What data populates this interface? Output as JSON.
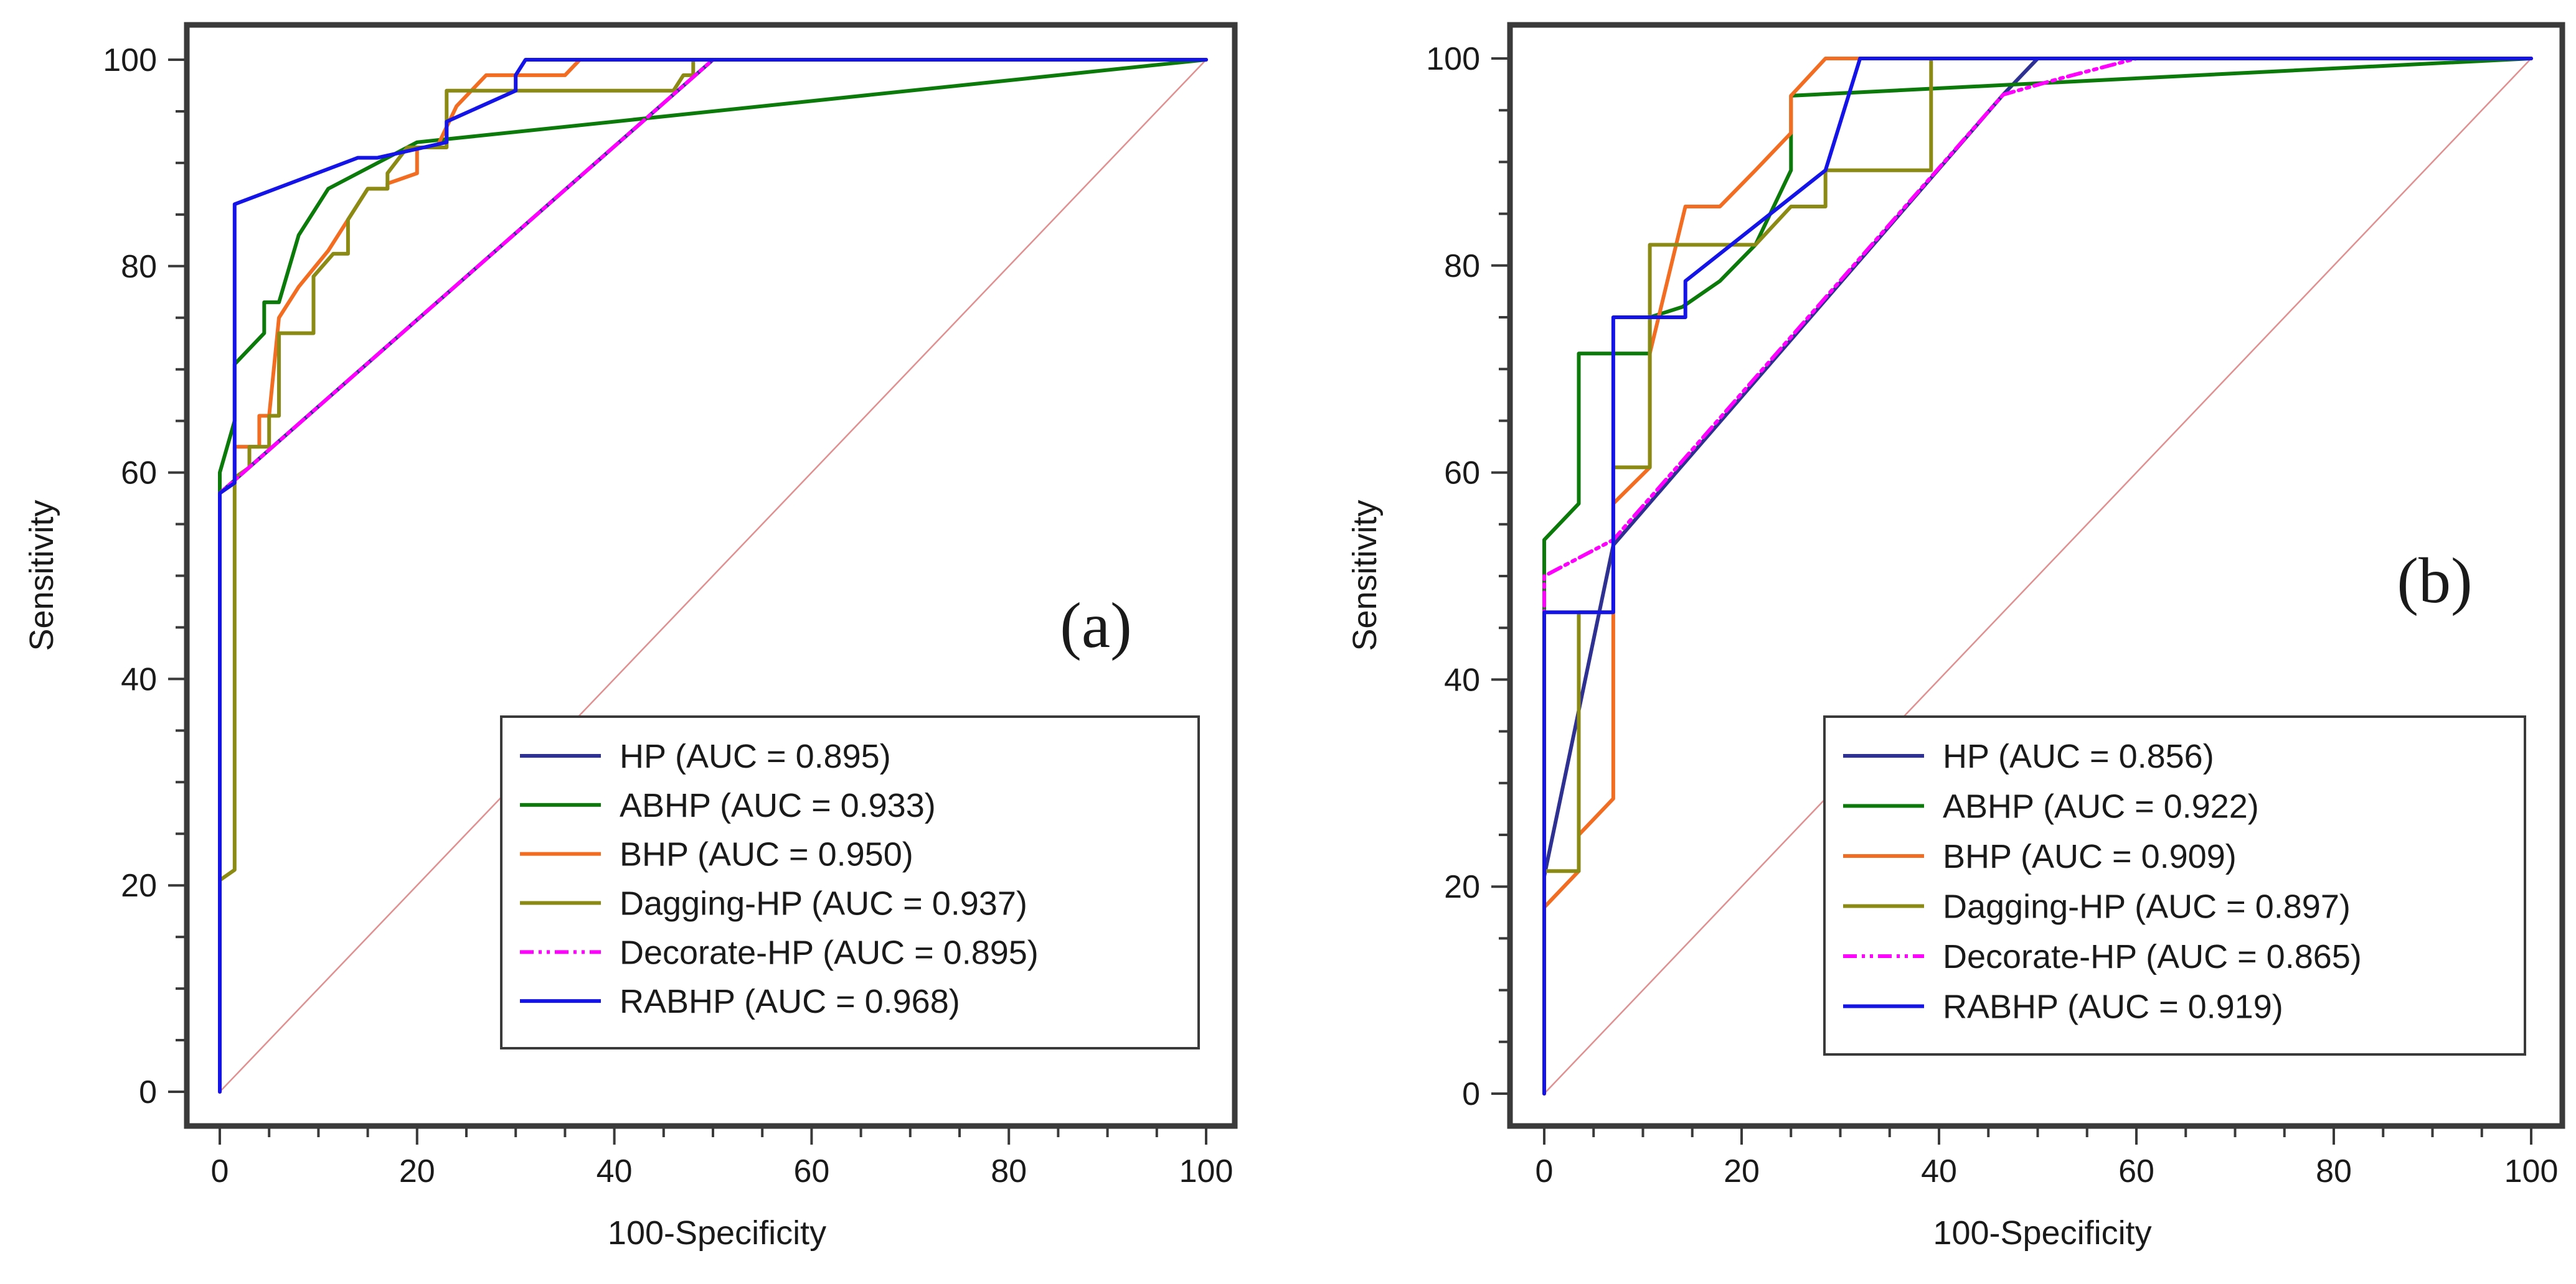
{
  "chart_data": [
    {
      "type": "line",
      "panel_label": "(a)",
      "xlabel": "100-Specificity",
      "ylabel": "Sensitivity",
      "xlim": [
        0,
        100
      ],
      "ylim": [
        0,
        100
      ],
      "xticks": [
        "0",
        "20",
        "40",
        "60",
        "80",
        "100"
      ],
      "yticks": [
        "0",
        "20",
        "40",
        "60",
        "80",
        "100"
      ],
      "legend_position": "bottom-right",
      "series": [
        {
          "name": "HP",
          "label": "HP (AUC = 0.895)",
          "auc": 0.895,
          "color": "#2e3192",
          "dash": "solid",
          "points": [
            [
              0,
              0
            ],
            [
              0,
              58
            ],
            [
              50,
              100
            ],
            [
              100,
              100
            ]
          ]
        },
        {
          "name": "ABHP",
          "label": "ABHP (AUC = 0.933)",
          "auc": 0.933,
          "color": "#0b7a0b",
          "dash": "solid",
          "points": [
            [
              0,
              0
            ],
            [
              0,
              60
            ],
            [
              1.5,
              65
            ],
            [
              1.5,
              70.5
            ],
            [
              4.5,
              73.5
            ],
            [
              4.5,
              76.5
            ],
            [
              6,
              76.5
            ],
            [
              8,
              83
            ],
            [
              11,
              87.5
            ],
            [
              16,
              90
            ],
            [
              20,
              92
            ],
            [
              25,
              92.5
            ],
            [
              100,
              100
            ]
          ]
        },
        {
          "name": "BHP",
          "label": "BHP (AUC = 0.950)",
          "auc": 0.95,
          "color": "#f26d21",
          "dash": "solid",
          "points": [
            [
              0,
              0
            ],
            [
              0,
              58
            ],
            [
              1.5,
              59
            ],
            [
              1.5,
              62.5
            ],
            [
              4,
              62.5
            ],
            [
              4,
              65.5
            ],
            [
              5,
              65.5
            ],
            [
              6,
              75
            ],
            [
              8,
              78
            ],
            [
              11,
              81.5
            ],
            [
              13,
              84.5
            ],
            [
              15,
              87.5
            ],
            [
              17,
              87.5
            ],
            [
              17,
              88
            ],
            [
              20,
              89
            ],
            [
              20,
              91.5
            ],
            [
              22,
              91.5
            ],
            [
              24,
              95.5
            ],
            [
              27,
              98.5
            ],
            [
              30,
              98.5
            ],
            [
              35,
              98.5
            ],
            [
              36.5,
              100
            ],
            [
              100,
              100
            ]
          ]
        },
        {
          "name": "Dagging-HP",
          "label": "Dagging-HP (AUC = 0.937)",
          "auc": 0.937,
          "color": "#8a8a14",
          "dash": "solid",
          "points": [
            [
              0,
              0
            ],
            [
              0,
              20.5
            ],
            [
              1.5,
              21.5
            ],
            [
              1.5,
              59.5
            ],
            [
              3,
              60.5
            ],
            [
              3,
              62.5
            ],
            [
              5,
              62.5
            ],
            [
              5,
              65.5
            ],
            [
              6,
              65.5
            ],
            [
              6,
              73.5
            ],
            [
              9.5,
              73.5
            ],
            [
              9.5,
              79
            ],
            [
              11.5,
              81.2
            ],
            [
              13,
              81.2
            ],
            [
              13,
              84.5
            ],
            [
              15,
              87.5
            ],
            [
              17,
              87.5
            ],
            [
              17,
              89
            ],
            [
              19,
              91.5
            ],
            [
              23,
              91.5
            ],
            [
              23,
              97
            ],
            [
              46,
              97
            ],
            [
              47,
              98.5
            ],
            [
              48,
              98.5
            ],
            [
              48,
              100
            ],
            [
              100,
              100
            ]
          ]
        },
        {
          "name": "Decorate-HP",
          "label": "Decorate-HP (AUC = 0.895)",
          "auc": 0.895,
          "color": "#ff00ff",
          "dash": "dashdot",
          "points": [
            [
              0,
              0
            ],
            [
              0,
              58
            ],
            [
              50,
              100
            ],
            [
              100,
              100
            ]
          ]
        },
        {
          "name": "RABHP",
          "label": "RABHP (AUC = 0.968)",
          "auc": 0.968,
          "color": "#1414e6",
          "dash": "solid",
          "points": [
            [
              0,
              0
            ],
            [
              0,
              20
            ],
            [
              0,
              58
            ],
            [
              1.5,
              59
            ],
            [
              1.5,
              86
            ],
            [
              14,
              90.5
            ],
            [
              16,
              90.5
            ],
            [
              23,
              92
            ],
            [
              23,
              94
            ],
            [
              30,
              97
            ],
            [
              30,
              98.5
            ],
            [
              31,
              100
            ],
            [
              100,
              100
            ]
          ]
        }
      ]
    },
    {
      "type": "line",
      "panel_label": "(b)",
      "xlabel": "100-Specificity",
      "ylabel": "Sensitivity",
      "xlim": [
        0,
        100
      ],
      "ylim": [
        0,
        100
      ],
      "xticks": [
        "0",
        "20",
        "40",
        "60",
        "80",
        "100"
      ],
      "yticks": [
        "0",
        "20",
        "40",
        "60",
        "80",
        "100"
      ],
      "legend_position": "bottom-right",
      "series": [
        {
          "name": "HP",
          "label": "HP (AUC = 0.856)",
          "auc": 0.856,
          "color": "#2e3192",
          "dash": "solid",
          "points": [
            [
              0,
              0
            ],
            [
              0,
              21
            ],
            [
              7,
              53
            ],
            [
              46.5,
              96.5
            ],
            [
              50,
              100
            ],
            [
              100,
              100
            ]
          ]
        },
        {
          "name": "ABHP",
          "label": "ABHP (AUC = 0.922)",
          "auc": 0.922,
          "color": "#0b7a0b",
          "dash": "solid",
          "points": [
            [
              0,
              0
            ],
            [
              0,
              53.5
            ],
            [
              3.5,
              57
            ],
            [
              3.5,
              71.5
            ],
            [
              10.7,
              71.5
            ],
            [
              10.7,
              75
            ],
            [
              14,
              76
            ],
            [
              17.8,
              78.5
            ],
            [
              21.4,
              82
            ],
            [
              25,
              89.2
            ],
            [
              25,
              96.4
            ],
            [
              100,
              100
            ]
          ]
        },
        {
          "name": "BHP",
          "label": "BHP (AUC = 0.909)",
          "auc": 0.909,
          "color": "#f26d21",
          "dash": "solid",
          "points": [
            [
              0,
              0
            ],
            [
              0,
              18
            ],
            [
              3.5,
              21.5
            ],
            [
              3.5,
              25
            ],
            [
              7,
              28.5
            ],
            [
              7,
              57
            ],
            [
              10.7,
              60.5
            ],
            [
              10.7,
              71.5
            ],
            [
              14.3,
              85.7
            ],
            [
              17.8,
              85.7
            ],
            [
              21.4,
              89.2
            ],
            [
              25,
              92.8
            ],
            [
              25,
              96.4
            ],
            [
              28.5,
              100
            ],
            [
              100,
              100
            ]
          ]
        },
        {
          "name": "Dagging-HP",
          "label": "Dagging-HP (AUC = 0.897)",
          "auc": 0.897,
          "color": "#8a8a14",
          "dash": "solid",
          "points": [
            [
              0,
              0
            ],
            [
              0,
              21.5
            ],
            [
              3.5,
              21.5
            ],
            [
              3.5,
              46.5
            ],
            [
              7,
              46.5
            ],
            [
              7,
              60.5
            ],
            [
              10.7,
              60.5
            ],
            [
              10.7,
              82
            ],
            [
              21.4,
              82
            ],
            [
              25,
              85.7
            ],
            [
              28.5,
              85.7
            ],
            [
              28.5,
              89.2
            ],
            [
              39.2,
              89.2
            ],
            [
              39.2,
              100
            ],
            [
              100,
              100
            ]
          ]
        },
        {
          "name": "Decorate-HP",
          "label": "Decorate-HP (AUC = 0.865)",
          "auc": 0.865,
          "color": "#ff00ff",
          "dash": "dashdot",
          "points": [
            [
              0,
              0
            ],
            [
              0,
              50
            ],
            [
              7,
              53.5
            ],
            [
              46.5,
              96.5
            ],
            [
              52,
              98
            ],
            [
              60,
              100
            ],
            [
              100,
              100
            ]
          ]
        },
        {
          "name": "RABHP",
          "label": "RABHP (AUC = 0.919)",
          "auc": 0.919,
          "color": "#1414e6",
          "dash": "solid",
          "points": [
            [
              0,
              0
            ],
            [
              0,
              46.5
            ],
            [
              7,
              46.5
            ],
            [
              7,
              75
            ],
            [
              10.7,
              75
            ],
            [
              10.7,
              75
            ],
            [
              14.3,
              75
            ],
            [
              14.3,
              78.5
            ],
            [
              28.5,
              89.2
            ],
            [
              32,
              100
            ],
            [
              100,
              100
            ]
          ]
        }
      ]
    }
  ]
}
